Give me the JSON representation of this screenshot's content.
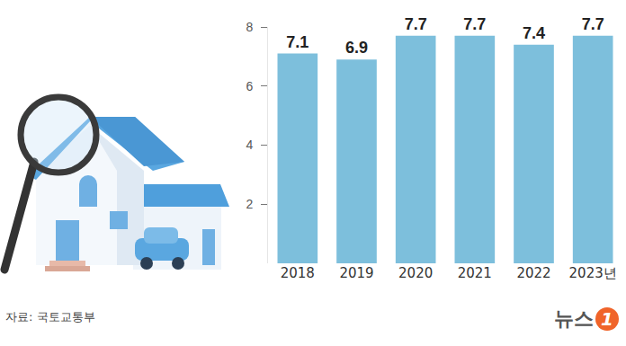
{
  "chart_data": {
    "type": "bar",
    "categories": [
      "2018",
      "2019",
      "2020",
      "2021",
      "2022",
      "2023년"
    ],
    "values": [
      7.1,
      6.9,
      7.7,
      7.7,
      7.4,
      7.7
    ],
    "color": "#7dbfdc",
    "ylim": [
      0,
      8
    ],
    "yticks": [
      2,
      4,
      6,
      8
    ],
    "grid": false,
    "data_labels": true
  },
  "source": "자료: 국토교통부",
  "logo": "뉴스1"
}
